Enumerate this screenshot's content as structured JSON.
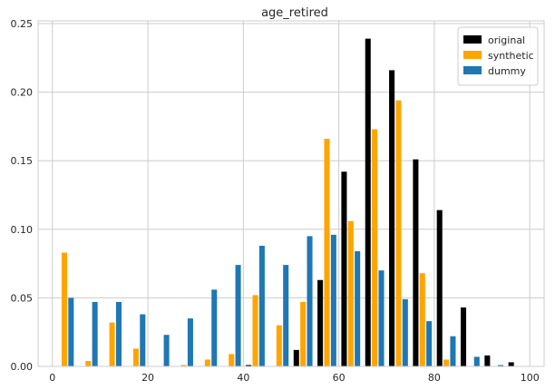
{
  "chart_data": {
    "type": "bar",
    "title": "age_retired",
    "xlabel": "",
    "ylabel": "",
    "xlim": [
      -3,
      103
    ],
    "ylim": [
      0,
      0.252
    ],
    "grid": true,
    "legend_position": "top-right",
    "xticks": [
      0,
      20,
      40,
      60,
      80,
      100
    ],
    "xtick_labels": [
      "0",
      "20",
      "40",
      "60",
      "80",
      "100"
    ],
    "yticks": [
      0.0,
      0.05,
      0.1,
      0.15,
      0.2,
      0.25
    ],
    "ytick_labels": [
      "0.00",
      "0.05",
      "0.10",
      "0.15",
      "0.20",
      "0.25"
    ],
    "bin_edges": [
      0,
      5,
      10,
      15,
      20,
      25,
      30,
      35,
      40,
      45,
      50,
      55,
      60,
      65,
      70,
      75,
      80,
      85,
      90,
      95,
      100
    ],
    "series": [
      {
        "name": "original",
        "color": "#000000",
        "values": [
          0,
          0,
          0,
          0,
          0,
          0,
          0,
          0,
          0.001,
          0,
          0.012,
          0.063,
          0.142,
          0.239,
          0.216,
          0.151,
          0.114,
          0.043,
          0.008,
          0.003
        ]
      },
      {
        "name": "synthetic",
        "color": "#FFA500",
        "values": [
          0.083,
          0.004,
          0.032,
          0.013,
          0,
          0.001,
          0.005,
          0.009,
          0.052,
          0.03,
          0.047,
          0.166,
          0.106,
          0.173,
          0.194,
          0.068,
          0.005,
          0,
          0,
          0
        ]
      },
      {
        "name": "dummy",
        "color": "#1F77B4",
        "values": [
          0.05,
          0.047,
          0.047,
          0.038,
          0.023,
          0.035,
          0.056,
          0.074,
          0.088,
          0.074,
          0.095,
          0.096,
          0.084,
          0.07,
          0.049,
          0.033,
          0.022,
          0.007,
          0.001,
          0
        ]
      }
    ]
  }
}
